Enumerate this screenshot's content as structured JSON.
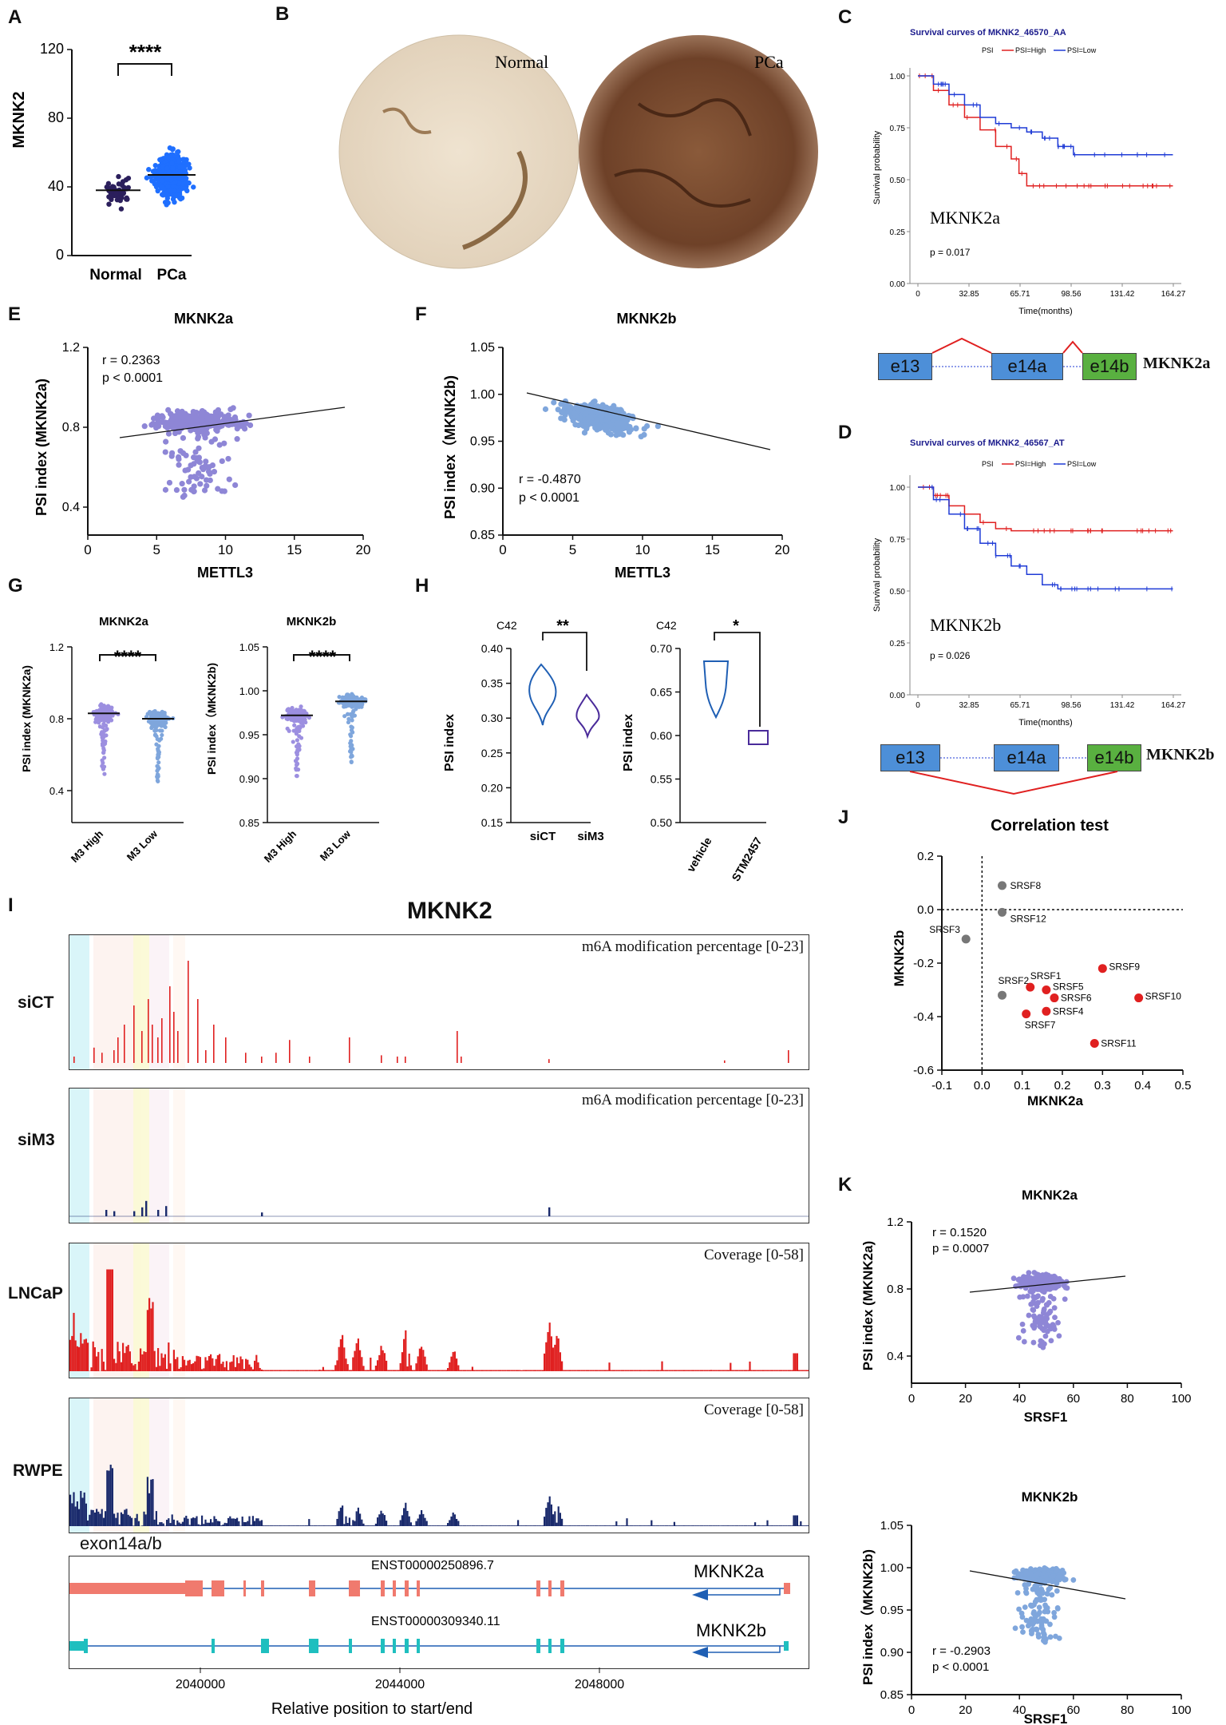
{
  "panels": {
    "A": {
      "letter": "A",
      "ylabel": "MKNK2",
      "yticks": [
        "0",
        "40",
        "80",
        "120"
      ],
      "categories": [
        "Normal",
        "PCa"
      ],
      "sig": "****"
    },
    "B": {
      "letter": "B",
      "labels": [
        "Normal",
        "PCa"
      ]
    },
    "C": {
      "letter": "C",
      "title": "Survival curves of MKNK2_46570_AA",
      "legend": [
        "PSI",
        "PSI=High",
        "PSI=Low"
      ],
      "ylabel": "Survival probability",
      "xlabel": "Time(months)",
      "yticks": [
        "0.00",
        "0.25",
        "0.50",
        "0.75",
        "1.00"
      ],
      "xticks": [
        "0",
        "32.85",
        "65.71",
        "98.56",
        "131.42",
        "164.27"
      ],
      "name": "MKNK2a",
      "p": "p = 0.017"
    },
    "D": {
      "letter": "D",
      "title": "Survival curves of MKNK2_46567_AT",
      "legend": [
        "PSI",
        "PSI=High",
        "PSI=Low"
      ],
      "ylabel": "Survival probability",
      "xlabel": "Time(months)",
      "yticks": [
        "0.00",
        "0.25",
        "0.50",
        "0.75",
        "1.00"
      ],
      "xticks": [
        "0",
        "32.85",
        "65.71",
        "98.56",
        "131.42",
        "164.27"
      ],
      "name": "MKNK2b",
      "p": "p = 0.026"
    },
    "splice": {
      "e13": "e13",
      "e14a": "e14a",
      "e14b": "e14b",
      "labelA": "MKNK2a",
      "labelB": "MKNK2b"
    },
    "E": {
      "letter": "E",
      "title": "MKNK2a",
      "ylabel": "PSI index (MKNK2a)",
      "xlabel": "METTL3",
      "r": "r = 0.2363",
      "p": "p < 0.0001",
      "yticks": [
        "0.4",
        "0.8",
        "1.2"
      ],
      "xticks": [
        "0",
        "5",
        "10",
        "15",
        "20"
      ]
    },
    "F": {
      "letter": "F",
      "title": "MKNK2b",
      "ylabel": "PSI index（MKNK2b)",
      "xlabel": "METTL3",
      "r": "r = -0.4870",
      "p": "p < 0.0001",
      "yticks": [
        "0.85",
        "0.90",
        "0.95",
        "1.00",
        "1.05"
      ],
      "xticks": [
        "0",
        "5",
        "10",
        "15",
        "20"
      ]
    },
    "G": {
      "letter": "G",
      "left": {
        "title": "MKNK2a",
        "ylabel": "PSI index (MKNK2a)",
        "yticks": [
          "0.4",
          "0.8",
          "1.2"
        ],
        "cats": [
          "M3 High",
          "M3 Low"
        ],
        "sig": "****"
      },
      "right": {
        "title": "MKNK2b",
        "ylabel": "PSI index（MKNK2b)",
        "yticks": [
          "0.85",
          "0.90",
          "0.95",
          "1.00",
          "1.05"
        ],
        "cats": [
          "M3 High",
          "M3 Low"
        ],
        "sig": "****"
      }
    },
    "H": {
      "letter": "H",
      "left": {
        "cell": "C42",
        "ylabel": "PSI index",
        "yticks": [
          "0.15",
          "0.20",
          "0.25",
          "0.30",
          "0.35",
          "0.40"
        ],
        "cats": [
          "siCT",
          "siM3"
        ],
        "sig": "**"
      },
      "right": {
        "cell": "C42",
        "ylabel": "PSI index",
        "yticks": [
          "0.50",
          "0.55",
          "0.60",
          "0.65",
          "0.70"
        ],
        "cats": [
          "vehicle",
          "STM2457"
        ],
        "sig": "*"
      }
    },
    "I": {
      "letter": "I",
      "title": "MKNK2",
      "tracks": [
        {
          "label": "siCT",
          "scale": "m6A modification percentage [0-23]"
        },
        {
          "label": "siM3",
          "scale": "m6A modification percentage [0-23]"
        },
        {
          "label": "LNCaP",
          "scale": "Coverage [0-58]"
        },
        {
          "label": "RWPE",
          "scale": "Coverage [0-58]"
        }
      ],
      "exon_label": "exon14a/b",
      "tx1": "ENST00000250896.7",
      "tx2": "ENST00000309340.11",
      "iso1": "MKNK2a",
      "iso2": "MKNK2b",
      "xticks": [
        "2040000",
        "2044000",
        "2048000"
      ],
      "xlabel": "Relative position to start/end"
    },
    "J": {
      "letter": "J",
      "title": "Correlation test",
      "xlabel": "MKNK2a",
      "ylabel": "MKNK2b",
      "xticks": [
        "-0.1",
        "0.0",
        "0.1",
        "0.2",
        "0.3",
        "0.4",
        "0.5"
      ],
      "yticks": [
        "-0.6",
        "-0.4",
        "-0.2",
        "0.0",
        "0.2"
      ]
    },
    "K": {
      "letter": "K",
      "top": {
        "title": "MKNK2a",
        "ylabel": "PSI index (MKNK2a)",
        "xlabel": "SRSF1",
        "r": "r = 0.1520",
        "p": "p = 0.0007",
        "yticks": [
          "0.4",
          "0.8",
          "1.2"
        ],
        "xticks": [
          "0",
          "20",
          "40",
          "60",
          "80",
          "100"
        ]
      },
      "bottom": {
        "title": "MKNK2b",
        "ylabel": "PSI index（MKNK2b)",
        "xlabel": "SRSF1",
        "r": "r = -0.2903",
        "p": "p < 0.0001",
        "yticks": [
          "0.85",
          "0.90",
          "0.95",
          "1.00",
          "1.05"
        ],
        "xticks": [
          "0",
          "20",
          "40",
          "60",
          "80",
          "100"
        ]
      }
    }
  },
  "chart_data": [
    {
      "type": "scatter",
      "id": "J",
      "title": "Correlation test",
      "xlabel": "MKNK2a",
      "ylabel": "MKNK2b",
      "xlim": [
        -0.1,
        0.5
      ],
      "ylim": [
        -0.6,
        0.2
      ],
      "points": [
        {
          "name": "SRSF8",
          "x": 0.05,
          "y": 0.09,
          "color": "#777777"
        },
        {
          "name": "SRSF12",
          "x": 0.05,
          "y": -0.01,
          "color": "#777777"
        },
        {
          "name": "SRSF3",
          "x": -0.04,
          "y": -0.11,
          "color": "#777777"
        },
        {
          "name": "SRSF2",
          "x": 0.05,
          "y": -0.32,
          "color": "#777777"
        },
        {
          "name": "SRSF9",
          "x": 0.3,
          "y": -0.22,
          "color": "#e02020"
        },
        {
          "name": "SRSF1",
          "x": 0.12,
          "y": -0.29,
          "color": "#e02020"
        },
        {
          "name": "SRSF5",
          "x": 0.16,
          "y": -0.3,
          "color": "#e02020"
        },
        {
          "name": "SRSF6",
          "x": 0.18,
          "y": -0.33,
          "color": "#e02020"
        },
        {
          "name": "SRSF10",
          "x": 0.39,
          "y": -0.33,
          "color": "#e02020"
        },
        {
          "name": "SRSF4",
          "x": 0.16,
          "y": -0.38,
          "color": "#e02020"
        },
        {
          "name": "SRSF7",
          "x": 0.11,
          "y": -0.39,
          "color": "#e02020"
        },
        {
          "name": "SRSF11",
          "x": 0.28,
          "y": -0.5,
          "color": "#e02020"
        }
      ]
    },
    {
      "type": "line",
      "id": "C-survival",
      "series": [
        {
          "name": "PSI=High",
          "color": "#e02020",
          "x": [
            0,
            10,
            20,
            30,
            40,
            50,
            60,
            65,
            70,
            80,
            100,
            164
          ],
          "y": [
            1.0,
            0.93,
            0.86,
            0.8,
            0.74,
            0.66,
            0.6,
            0.53,
            0.47,
            0.47,
            0.47,
            0.47
          ]
        },
        {
          "name": "PSI=Low",
          "color": "#1f3bd6",
          "x": [
            0,
            10,
            20,
            30,
            40,
            50,
            60,
            70,
            80,
            90,
            100,
            120,
            164
          ],
          "y": [
            1.0,
            0.96,
            0.91,
            0.86,
            0.8,
            0.77,
            0.75,
            0.73,
            0.7,
            0.66,
            0.62,
            0.62,
            0.62
          ]
        }
      ],
      "xlim": [
        0,
        164.27
      ],
      "ylim": [
        0,
        1
      ]
    },
    {
      "type": "line",
      "id": "D-survival",
      "series": [
        {
          "name": "PSI=High",
          "color": "#e02020",
          "x": [
            0,
            10,
            20,
            30,
            40,
            50,
            60,
            70,
            164
          ],
          "y": [
            1.0,
            0.96,
            0.91,
            0.87,
            0.83,
            0.8,
            0.79,
            0.79,
            0.79
          ]
        },
        {
          "name": "PSI=Low",
          "color": "#1f3bd6",
          "x": [
            0,
            10,
            20,
            30,
            40,
            50,
            60,
            70,
            80,
            90,
            164
          ],
          "y": [
            1.0,
            0.94,
            0.87,
            0.8,
            0.73,
            0.67,
            0.62,
            0.58,
            0.53,
            0.51,
            0.51
          ]
        }
      ],
      "xlim": [
        0,
        164.27
      ],
      "ylim": [
        0,
        1
      ]
    }
  ],
  "colors": {
    "red": "#e02020",
    "blue": "#1f3bd6",
    "navy": "#1a2a6c",
    "purple": "#8e86d6",
    "lightblue": "#7fa6dc",
    "darkpurple": "#2b1f5c",
    "violinBlue": "#1f5fb4",
    "violinPurple": "#4a2b9a",
    "exonBlue": "#4d8fd8",
    "exonGreen": "#59b040",
    "salmon": "#f07a6e",
    "teal": "#1fbfbf"
  }
}
